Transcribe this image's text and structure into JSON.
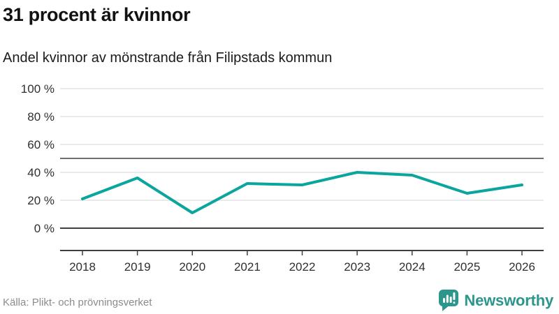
{
  "header": {
    "title": "31 procent är kvinnor",
    "subtitle": "Andel kvinnor av mönstrande från Filipstads kommun"
  },
  "footer": {
    "source": "Källa: Plikt- och prövningsverket",
    "brand": "Newsworthy"
  },
  "colors": {
    "line": "#0aa59c",
    "brand": "#2d968c",
    "grid_light": "#e2e2e2",
    "grid_mid": "#6f6f6f",
    "axis_dark": "#3f3f3f",
    "text_axis": "#303030"
  },
  "chart_data": {
    "type": "line",
    "title": "31 procent är kvinnor",
    "subtitle": "Andel kvinnor av mönstrande från Filipstads kommun",
    "x": [
      2018,
      2019,
      2020,
      2021,
      2022,
      2023,
      2024,
      2025,
      2026
    ],
    "series": [
      {
        "name": "Andel kvinnor av mönstrande",
        "values": [
          21,
          36,
          11,
          32,
          31,
          40,
          38,
          25,
          31
        ]
      }
    ],
    "unit": "%",
    "ylim": [
      0,
      100
    ],
    "yticks": [
      0,
      20,
      40,
      60,
      80,
      100
    ],
    "ytick_labels": [
      "0 %",
      "20 %",
      "40 %",
      "60 %",
      "80 %",
      "100 %"
    ],
    "reference_line": 50,
    "grid": true,
    "legend": false,
    "source": "Källa: Plikt- och prövningsverket"
  }
}
